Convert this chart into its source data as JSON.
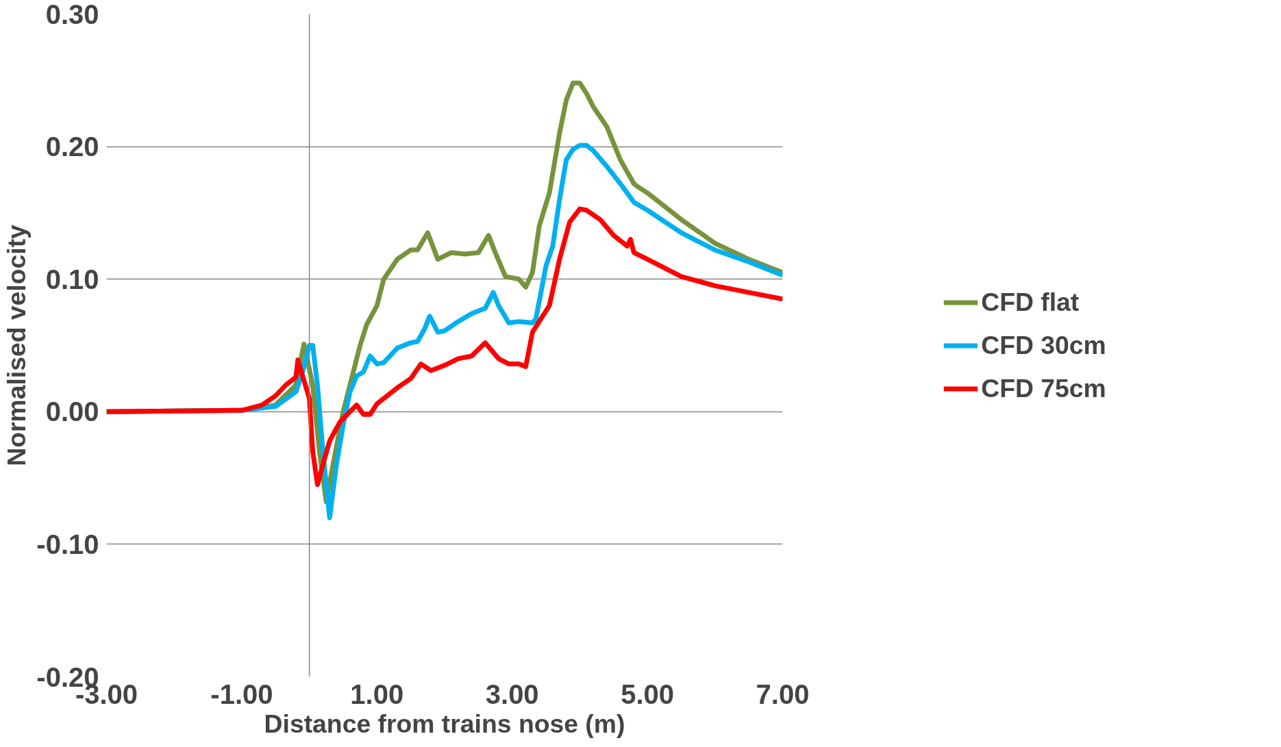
{
  "chart_data": {
    "type": "line",
    "xlabel": "Distance from trains nose (m)",
    "ylabel": "Normalised velocity",
    "xlim": [
      -3,
      7
    ],
    "ylim": [
      -0.2,
      0.3
    ],
    "xticks": [
      {
        "value": -3,
        "label": "-3.00"
      },
      {
        "value": -1,
        "label": "-1.00"
      },
      {
        "value": 1,
        "label": "1.00"
      },
      {
        "value": 3,
        "label": "3.00"
      },
      {
        "value": 5,
        "label": "5.00"
      },
      {
        "value": 7,
        "label": "7.00"
      }
    ],
    "yticks": [
      {
        "value": -0.2,
        "label": "-0.20"
      },
      {
        "value": -0.1,
        "label": "-0.10"
      },
      {
        "value": 0,
        "label": "0.00"
      },
      {
        "value": 0.1,
        "label": "0.10"
      },
      {
        "value": 0.2,
        "label": "0.20"
      },
      {
        "value": 0.3,
        "label": "0.30"
      }
    ],
    "grid": "y",
    "legend": "right",
    "marker": "none",
    "line_style": "solid",
    "ref_lines": [
      {
        "axis": "x",
        "value": 0,
        "label": null,
        "color": "#868686"
      }
    ],
    "series": [
      {
        "name": "CFD flat",
        "color": "#77933c",
        "x": [
          -3,
          -1,
          -0.5,
          -0.2,
          -0.08,
          0.05,
          0.15,
          0.25,
          0.35,
          0.5,
          0.6,
          0.75,
          0.85,
          1.0,
          1.1,
          1.3,
          1.5,
          1.6,
          1.75,
          1.9,
          2.1,
          2.3,
          2.5,
          2.65,
          2.75,
          2.9,
          3.1,
          3.2,
          3.3,
          3.4,
          3.55,
          3.7,
          3.8,
          3.9,
          4.0,
          4.1,
          4.2,
          4.4,
          4.6,
          4.8,
          4.85,
          5.0,
          5.5,
          6.0,
          6.5,
          7.0
        ],
        "values": [
          0,
          0.001,
          0.005,
          0.02,
          0.051,
          0.02,
          -0.03,
          -0.068,
          -0.04,
          0.0,
          0.02,
          0.05,
          0.066,
          0.08,
          0.1,
          0.115,
          0.122,
          0.122,
          0.135,
          0.115,
          0.12,
          0.119,
          0.12,
          0.133,
          0.12,
          0.102,
          0.1,
          0.094,
          0.105,
          0.14,
          0.165,
          0.21,
          0.235,
          0.248,
          0.248,
          0.24,
          0.23,
          0.215,
          0.19,
          0.172,
          0.17,
          0.165,
          0.145,
          0.127,
          0.115,
          0.105
        ]
      },
      {
        "name": "CFD 30cm",
        "color": "#00b0f0",
        "x": [
          -3,
          -1,
          -0.5,
          -0.2,
          -0.1,
          0,
          0.05,
          0.12,
          0.2,
          0.3,
          0.4,
          0.5,
          0.6,
          0.7,
          0.8,
          0.9,
          1.0,
          1.1,
          1.3,
          1.5,
          1.6,
          1.7,
          1.78,
          1.9,
          2.0,
          2.2,
          2.4,
          2.6,
          2.72,
          2.8,
          2.95,
          3.1,
          3.3,
          3.35,
          3.5,
          3.6,
          3.7,
          3.8,
          3.9,
          4.0,
          4.1,
          4.2,
          4.4,
          4.6,
          4.8,
          5.0,
          5.5,
          6.0,
          6.5,
          7.0
        ],
        "values": [
          0,
          0.001,
          0.004,
          0.015,
          0.03,
          0.05,
          0.05,
          0.02,
          -0.03,
          -0.08,
          -0.04,
          -0.01,
          0.015,
          0.027,
          0.03,
          0.042,
          0.036,
          0.037,
          0.048,
          0.052,
          0.053,
          0.062,
          0.072,
          0.06,
          0.061,
          0.068,
          0.074,
          0.078,
          0.09,
          0.08,
          0.067,
          0.068,
          0.067,
          0.07,
          0.11,
          0.125,
          0.16,
          0.19,
          0.198,
          0.201,
          0.201,
          0.197,
          0.185,
          0.172,
          0.158,
          0.152,
          0.135,
          0.122,
          0.113,
          0.103
        ]
      },
      {
        "name": "CFD 75cm",
        "color": "#ff0000",
        "x": [
          -3,
          -1,
          -0.7,
          -0.5,
          -0.35,
          -0.2,
          -0.17,
          0,
          0.05,
          0.12,
          0.2,
          0.3,
          0.45,
          0.6,
          0.7,
          0.8,
          0.9,
          1.0,
          1.3,
          1.5,
          1.65,
          1.8,
          2.0,
          2.2,
          2.4,
          2.6,
          2.8,
          2.95,
          3.1,
          3.2,
          3.3,
          3.45,
          3.55,
          3.7,
          3.85,
          4.0,
          4.1,
          4.3,
          4.5,
          4.7,
          4.75,
          4.8,
          5.0,
          5.5,
          6.0,
          6.5,
          7.0
        ],
        "values": [
          0,
          0.001,
          0.005,
          0.012,
          0.02,
          0.026,
          0.039,
          0.01,
          -0.03,
          -0.055,
          -0.04,
          -0.022,
          -0.008,
          0.0,
          0.005,
          -0.002,
          -0.002,
          0.006,
          0.018,
          0.025,
          0.036,
          0.031,
          0.035,
          0.04,
          0.042,
          0.052,
          0.04,
          0.036,
          0.036,
          0.034,
          0.06,
          0.072,
          0.08,
          0.115,
          0.143,
          0.153,
          0.152,
          0.145,
          0.133,
          0.125,
          0.13,
          0.12,
          0.115,
          0.102,
          0.095,
          0.09,
          0.085
        ]
      }
    ]
  }
}
